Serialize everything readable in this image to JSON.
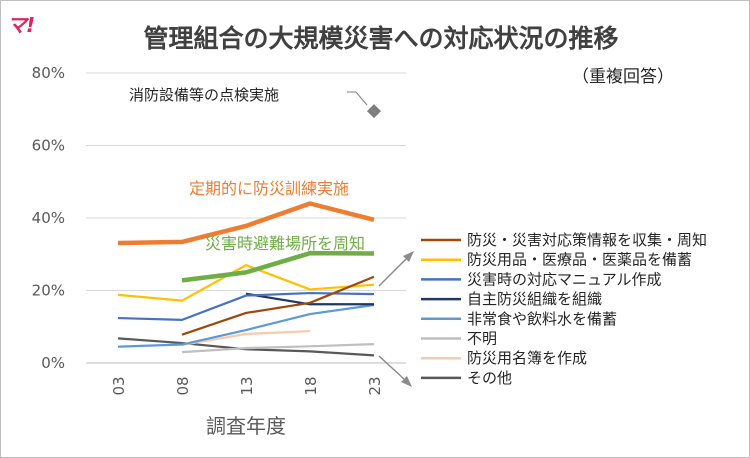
{
  "logo": "マ!",
  "chart_data": {
    "type": "line",
    "title": "管理組合の大規模災害への対応状況の推移",
    "subtitle": "（重複回答）",
    "xlabel": "調査年度",
    "ylabel": "",
    "categories": [
      "03",
      "08",
      "13",
      "18",
      "23"
    ],
    "ylim": [
      0,
      80
    ],
    "yticks": [
      "0%",
      "20%",
      "40%",
      "60%",
      "80%"
    ],
    "grid": true,
    "legend_position": "right",
    "series": [
      {
        "name": "消防設備等の点検実施",
        "color": "#7f7f7f",
        "values": [
          null,
          null,
          null,
          null,
          69.5
        ],
        "marker": "diamond",
        "in_legend": false
      },
      {
        "name": "定期的に防災訓練実施",
        "color": "#ed7d31",
        "values": [
          33.1,
          33.4,
          37.8,
          44.0,
          39.5
        ],
        "in_legend": false,
        "bold": true
      },
      {
        "name": "災害時避難場所を周知",
        "color": "#70ad47",
        "values": [
          null,
          22.8,
          25.0,
          30.3,
          30.2
        ],
        "in_legend": false,
        "bold": true
      },
      {
        "name": "防災・災害対応策情報を収集・周知",
        "color": "#9e480e",
        "values": [
          null,
          7.8,
          13.8,
          16.6,
          23.8
        ],
        "in_legend": true
      },
      {
        "name": "防災用品・医療品・医薬品を備蓄",
        "color": "#ffc000",
        "values": [
          18.8,
          17.2,
          27.0,
          20.3,
          21.6
        ],
        "in_legend": true
      },
      {
        "name": "災害時の対応マニュアル作成",
        "color": "#4472c4",
        "values": [
          12.4,
          11.9,
          18.6,
          19.3,
          19.0
        ],
        "in_legend": true
      },
      {
        "name": "自主防災組織を組織",
        "color": "#203864",
        "values": [
          null,
          null,
          19.1,
          16.2,
          16.2
        ],
        "in_legend": true
      },
      {
        "name": "非常食や飲料水を備蓄",
        "color": "#5b9bd5",
        "values": [
          4.5,
          5.1,
          9.1,
          13.5,
          16.0
        ],
        "in_legend": true
      },
      {
        "name": "不明",
        "color": "#bfbfbf",
        "values": [
          null,
          3.0,
          4.1,
          4.6,
          5.2
        ],
        "in_legend": true
      },
      {
        "name": "防災用名簿を作成",
        "color": "#f8cbad",
        "values": [
          null,
          5.0,
          8.0,
          8.8,
          null
        ],
        "in_legend": true
      },
      {
        "name": "その他",
        "color": "#595959",
        "values": [
          6.8,
          5.5,
          3.8,
          3.2,
          2.1
        ],
        "in_legend": true
      }
    ]
  }
}
